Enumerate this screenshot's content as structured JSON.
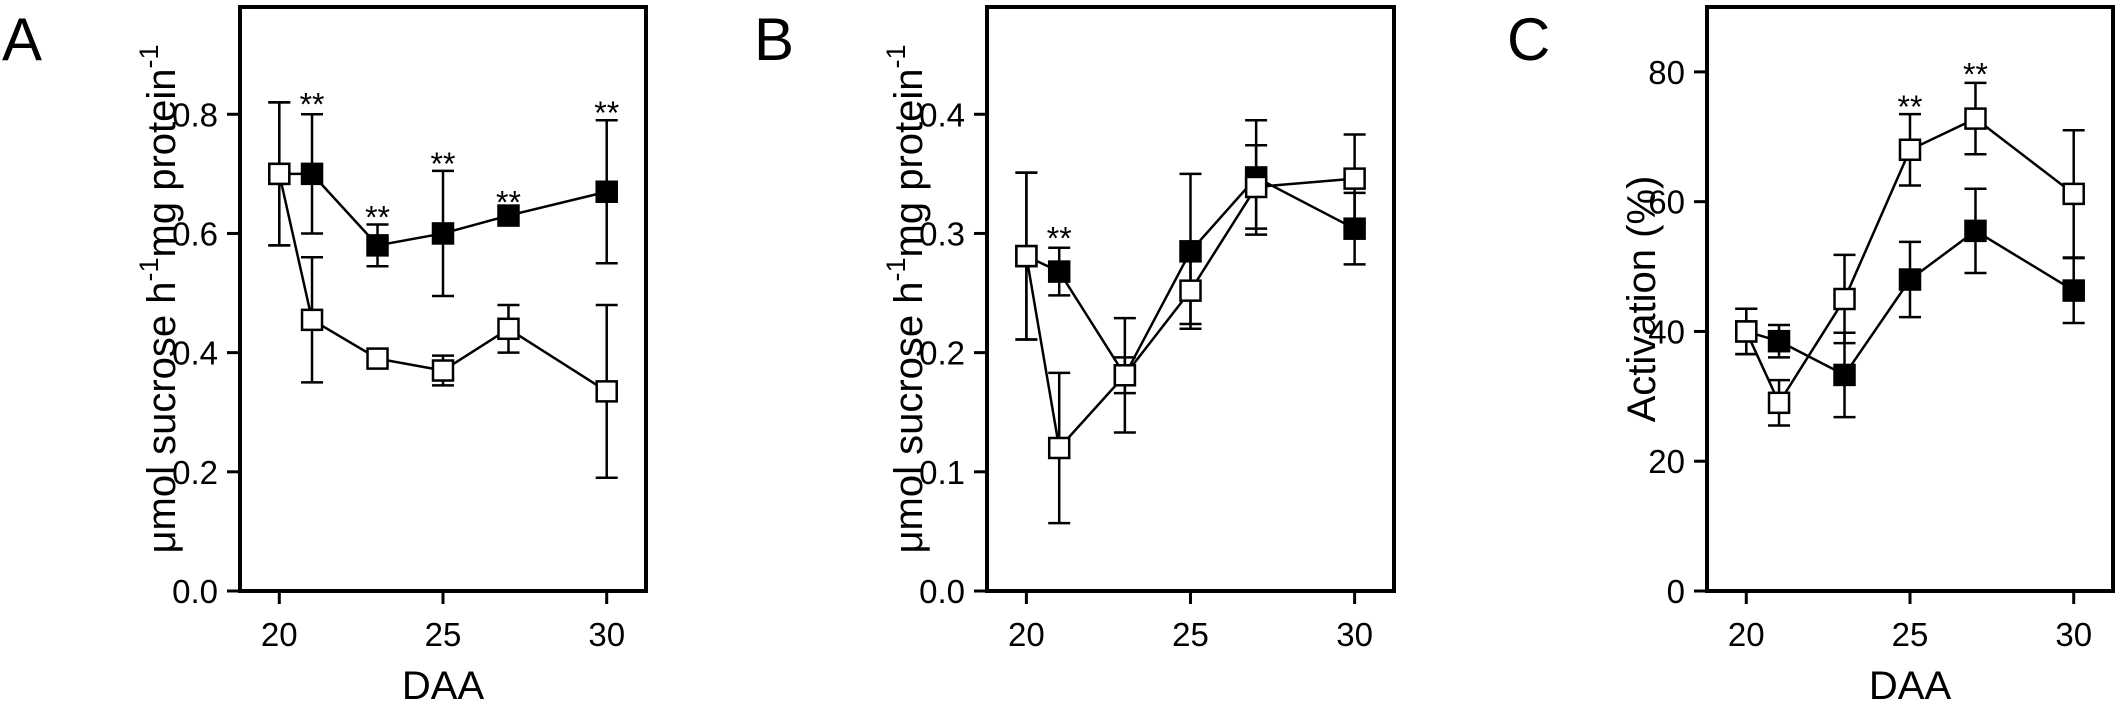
{
  "chart_data": [
    {
      "type": "line",
      "panel_label": "A",
      "title": "",
      "xlabel": "DAA",
      "ylabel": "μmol sucrose h",
      "ylabel_sup1": "-1",
      "ylabel_mid": "mg protein",
      "ylabel_sup2": "-1",
      "xlim": [
        18.8,
        31.2
      ],
      "ylim": [
        0,
        0.98
      ],
      "xticks": [
        20,
        25,
        30
      ],
      "yticks": [
        0,
        0.2,
        0.4,
        0.6,
        0.8
      ],
      "ytick_labels": [
        "0.0",
        "0.2",
        "0.4",
        "0.6",
        "0.8"
      ],
      "grid": false,
      "x": [
        20,
        21,
        23,
        25,
        27,
        30
      ],
      "series": [
        {
          "marker": "filled-square",
          "values": [
            0.7,
            0.7,
            0.58,
            0.6,
            0.63,
            0.67
          ],
          "err": [
            0.12,
            0.1,
            0.035,
            0.105,
            0.01,
            0.12
          ]
        },
        {
          "marker": "open-square",
          "values": [
            0.7,
            0.455,
            0.39,
            0.37,
            0.44,
            0.335
          ],
          "err": [
            0.12,
            0.105,
            0.01,
            0.025,
            0.04,
            0.145
          ]
        }
      ],
      "annotations": [
        {
          "x": 21,
          "y": 0.805,
          "text": "**"
        },
        {
          "x": 23,
          "y": 0.615,
          "text": "**"
        },
        {
          "x": 25,
          "y": 0.705,
          "text": "**"
        },
        {
          "x": 27,
          "y": 0.64,
          "text": "**"
        },
        {
          "x": 30,
          "y": 0.79,
          "text": "**"
        }
      ]
    },
    {
      "type": "line",
      "panel_label": "B",
      "title": "",
      "xlabel": "",
      "ylabel": "μmol sucrose h",
      "ylabel_sup1": "-1",
      "ylabel_mid": "mg protein",
      "ylabel_sup2": "-1",
      "xlim": [
        18.8,
        31.2
      ],
      "ylim": [
        0,
        0.49
      ],
      "xticks": [
        20,
        25,
        30
      ],
      "yticks": [
        0,
        0.1,
        0.2,
        0.3,
        0.4
      ],
      "ytick_labels": [
        "0.0",
        "0.1",
        "0.2",
        "0.3",
        "0.4"
      ],
      "grid": false,
      "x": [
        20,
        21,
        23,
        25,
        27,
        30
      ],
      "series": [
        {
          "marker": "filled-square",
          "values": [
            0.281,
            0.268,
            0.181,
            0.285,
            0.347,
            0.304
          ],
          "err": [
            0.07,
            0.02,
            0.048,
            0.065,
            0.048,
            0.03
          ]
        },
        {
          "marker": "open-square",
          "values": [
            0.281,
            0.12,
            0.181,
            0.252,
            0.339,
            0.346
          ],
          "err": [
            0.07,
            0.063,
            0.015,
            0.028,
            0.035,
            0.037
          ]
        }
      ],
      "annotations": [
        {
          "x": 21,
          "y": 0.29,
          "text": "**"
        }
      ]
    },
    {
      "type": "line",
      "panel_label": "C",
      "title": "",
      "xlabel": "DAA",
      "ylabel": "Activation (%)",
      "xlim": [
        18.8,
        31.2
      ],
      "ylim": [
        0,
        90
      ],
      "xticks": [
        20,
        25,
        30
      ],
      "yticks": [
        0,
        20,
        40,
        60,
        80
      ],
      "ytick_labels": [
        "0",
        "20",
        "40",
        "60",
        "80"
      ],
      "grid": false,
      "x": [
        20,
        21,
        23,
        25,
        27,
        30
      ],
      "series": [
        {
          "marker": "filled-square",
          "values": [
            40,
            38.5,
            33.3,
            48,
            55.5,
            46.3
          ],
          "err": [
            3.5,
            2.5,
            6.5,
            5.8,
            6.5,
            5.0
          ]
        },
        {
          "marker": "open-square",
          "values": [
            40,
            29,
            45,
            68,
            72.8,
            61.2
          ],
          "err": [
            3.5,
            3.5,
            6.8,
            5.5,
            5.5,
            9.8
          ]
        }
      ],
      "annotations": [
        {
          "x": 25,
          "y": 73.5,
          "text": "**"
        },
        {
          "x": 27,
          "y": 78.5,
          "text": "**"
        }
      ]
    }
  ]
}
